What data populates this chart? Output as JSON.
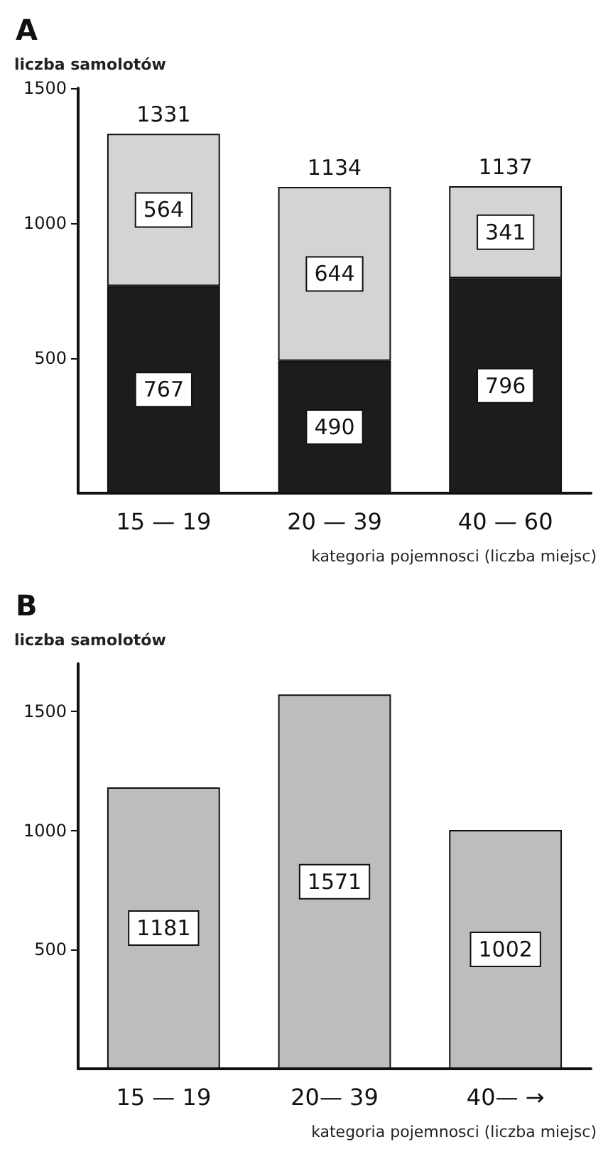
{
  "chart_data": [
    {
      "type": "bar",
      "title": "A",
      "ylabel": "liczba samolotów",
      "xlabel": "kategoria pojemnosci (liczba miejsc)",
      "categories": [
        "15 — 19",
        "20 — 39",
        "40 — 60"
      ],
      "stacked": true,
      "series": [
        {
          "color": "#1c1c1c",
          "values": [
            767,
            490,
            796
          ]
        },
        {
          "color": "#d4d4d4",
          "values": [
            564,
            644,
            341
          ]
        }
      ],
      "totals": [
        "1331",
        "1134",
        "1137"
      ],
      "data_labels": true,
      "ylim": [
        0,
        1500
      ],
      "yticks": [
        500,
        1000,
        1500
      ],
      "grid": false
    },
    {
      "type": "bar",
      "title": "B",
      "ylabel": "liczba samolotów",
      "xlabel": "kategoria pojemnosci (liczba miejsc)",
      "categories": [
        "15 — 19",
        "20— 39",
        "40— →"
      ],
      "series": [
        {
          "color": "#bdbdbd",
          "values": [
            1181,
            1571,
            1002
          ]
        }
      ],
      "data_labels": true,
      "ylim": [
        0,
        1700
      ],
      "yticks": [
        500,
        1000,
        1500
      ],
      "grid": false
    }
  ]
}
